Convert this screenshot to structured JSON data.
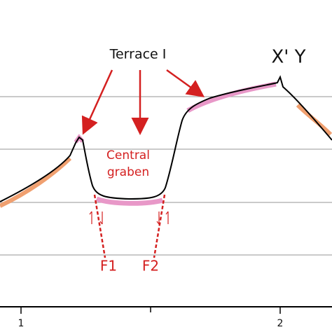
{
  "title": "X' Y",
  "annotations": {
    "terrace": "Terrace I",
    "graben": [
      "Central",
      "graben"
    ],
    "faults": [
      "F1",
      "F2"
    ]
  },
  "axis": {
    "ticks": [
      "1",
      "2"
    ]
  }
}
